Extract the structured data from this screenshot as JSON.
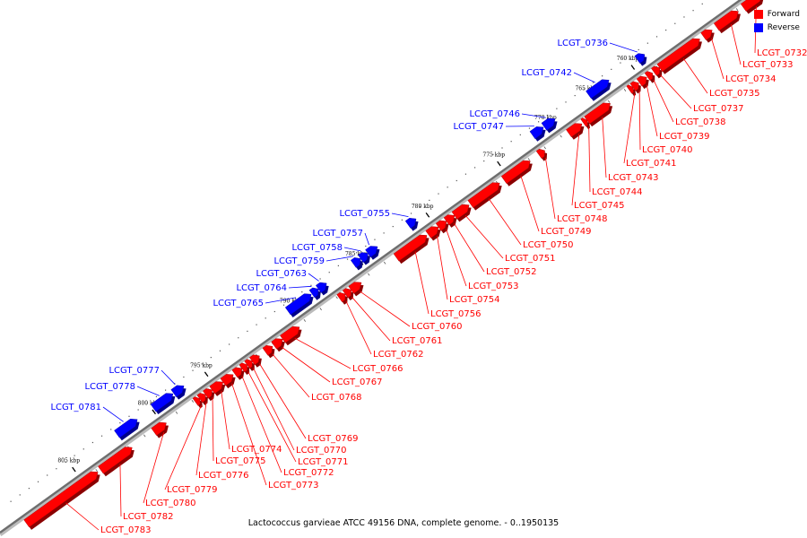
{
  "footer": "Lactococcus garvieae ATCC 49156 DNA, complete genome. - 0..1950135",
  "legend": {
    "forward_label": "Forward",
    "reverse_label": "Reverse",
    "forward_color": "#ff0000",
    "reverse_color": "#0000ff"
  },
  "ticks": [
    {
      "label": "760 kbp"
    },
    {
      "label": "765 kbp"
    },
    {
      "label": "770 kbp"
    },
    {
      "label": "775 kbp"
    },
    {
      "label": "780 kbp"
    },
    {
      "label": "785 kbp"
    },
    {
      "label": "790 kbp"
    },
    {
      "label": "795 kbp"
    },
    {
      "label": "800 kbp"
    },
    {
      "label": "805 kbp"
    }
  ],
  "genes": [
    {
      "label": "LCGT_0732",
      "strand": "forward"
    },
    {
      "label": "LCGT_0733",
      "strand": "forward"
    },
    {
      "label": "LCGT_0734",
      "strand": "forward"
    },
    {
      "label": "LCGT_0735",
      "strand": "forward"
    },
    {
      "label": "LCGT_0736",
      "strand": "reverse"
    },
    {
      "label": "LCGT_0737",
      "strand": "forward"
    },
    {
      "label": "LCGT_0738",
      "strand": "forward"
    },
    {
      "label": "LCGT_0739",
      "strand": "forward"
    },
    {
      "label": "LCGT_0740",
      "strand": "forward"
    },
    {
      "label": "LCGT_0741",
      "strand": "forward"
    },
    {
      "label": "LCGT_0742",
      "strand": "reverse"
    },
    {
      "label": "LCGT_0743",
      "strand": "forward"
    },
    {
      "label": "LCGT_0744",
      "strand": "forward"
    },
    {
      "label": "LCGT_0745",
      "strand": "forward"
    },
    {
      "label": "LCGT_0746",
      "strand": "reverse"
    },
    {
      "label": "LCGT_0747",
      "strand": "reverse"
    },
    {
      "label": "LCGT_0748",
      "strand": "forward"
    },
    {
      "label": "LCGT_0749",
      "strand": "forward"
    },
    {
      "label": "LCGT_0750",
      "strand": "forward"
    },
    {
      "label": "LCGT_0751",
      "strand": "forward"
    },
    {
      "label": "LCGT_0752",
      "strand": "forward"
    },
    {
      "label": "LCGT_0753",
      "strand": "forward"
    },
    {
      "label": "LCGT_0754",
      "strand": "forward"
    },
    {
      "label": "LCGT_0755",
      "strand": "reverse"
    },
    {
      "label": "LCGT_0756",
      "strand": "forward"
    },
    {
      "label": "LCGT_0757",
      "strand": "reverse"
    },
    {
      "label": "LCGT_0758",
      "strand": "reverse"
    },
    {
      "label": "LCGT_0759",
      "strand": "reverse"
    },
    {
      "label": "LCGT_0760",
      "strand": "forward"
    },
    {
      "label": "LCGT_0761",
      "strand": "forward"
    },
    {
      "label": "LCGT_0762",
      "strand": "forward"
    },
    {
      "label": "LCGT_0763",
      "strand": "reverse"
    },
    {
      "label": "LCGT_0764",
      "strand": "reverse"
    },
    {
      "label": "LCGT_0765",
      "strand": "reverse"
    },
    {
      "label": "LCGT_0766",
      "strand": "forward"
    },
    {
      "label": "LCGT_0767",
      "strand": "forward"
    },
    {
      "label": "LCGT_0768",
      "strand": "forward"
    },
    {
      "label": "LCGT_0769",
      "strand": "forward"
    },
    {
      "label": "LCGT_0770",
      "strand": "forward"
    },
    {
      "label": "LCGT_0771",
      "strand": "forward"
    },
    {
      "label": "LCGT_0772",
      "strand": "forward"
    },
    {
      "label": "LCGT_0773",
      "strand": "forward"
    },
    {
      "label": "LCGT_0774",
      "strand": "forward"
    },
    {
      "label": "LCGT_0775",
      "strand": "forward"
    },
    {
      "label": "LCGT_0776",
      "strand": "forward"
    },
    {
      "label": "LCGT_0777",
      "strand": "reverse"
    },
    {
      "label": "LCGT_0778",
      "strand": "reverse"
    },
    {
      "label": "LCGT_0779",
      "strand": "forward"
    },
    {
      "label": "LCGT_0780",
      "strand": "forward"
    },
    {
      "label": "LCGT_0781",
      "strand": "reverse"
    },
    {
      "label": "LCGT_0782",
      "strand": "forward"
    },
    {
      "label": "LCGT_0783",
      "strand": "forward"
    }
  ]
}
